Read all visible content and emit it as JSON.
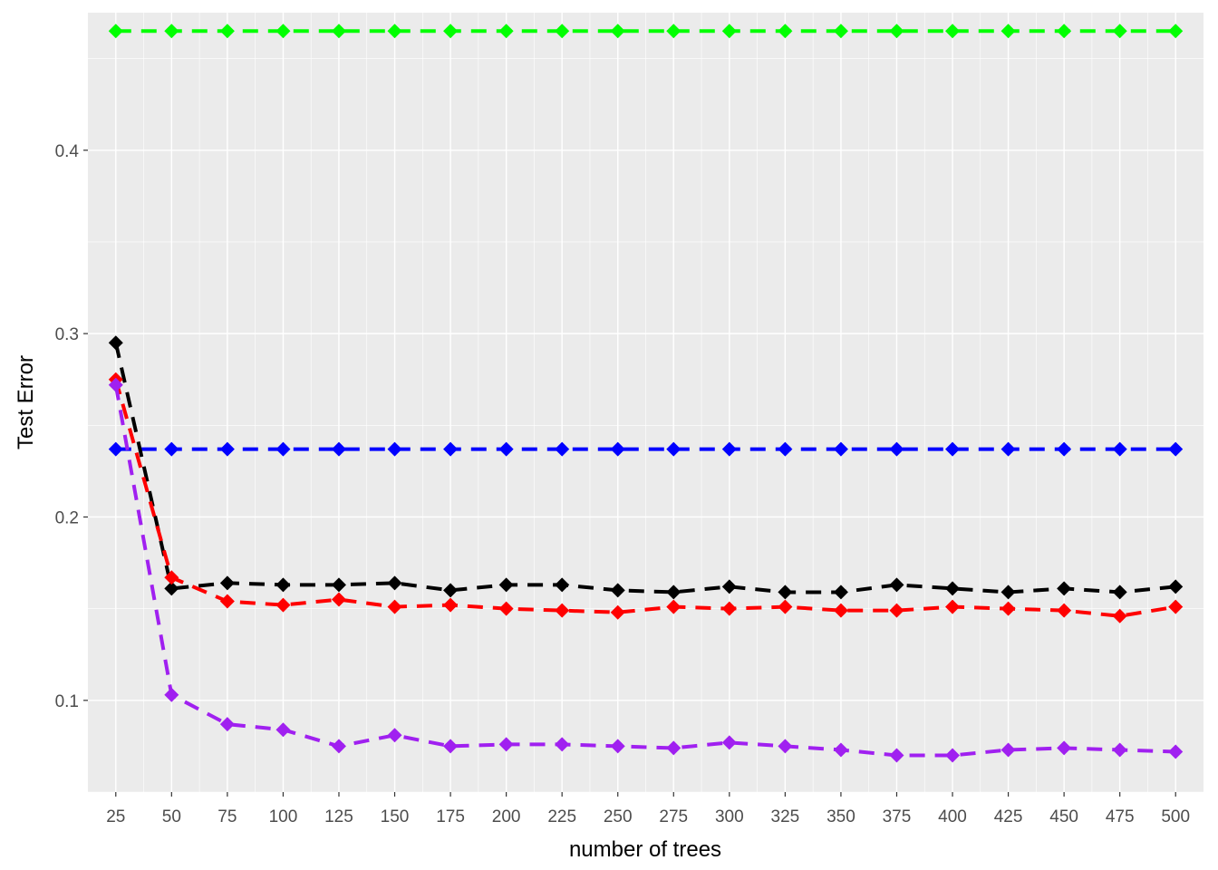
{
  "chart_data": {
    "type": "line",
    "title": "",
    "xlabel": "number of trees",
    "ylabel": "Test Error",
    "x": [
      25,
      50,
      75,
      100,
      125,
      150,
      175,
      200,
      225,
      250,
      275,
      300,
      325,
      350,
      375,
      400,
      425,
      450,
      475,
      500
    ],
    "xlim": [
      12.5,
      512.5
    ],
    "ylim": [
      0.05,
      0.475
    ],
    "y_ticks": [
      0.1,
      0.2,
      0.3,
      0.4
    ],
    "y_tick_labels": [
      "0.1",
      "0.2",
      "0.3",
      "0.4"
    ],
    "grid": true,
    "line_style": "dashed",
    "marker": "diamond",
    "legend": "none",
    "series": [
      {
        "color": "#00ff00",
        "values": [
          0.465,
          0.465,
          0.465,
          0.465,
          0.465,
          0.465,
          0.465,
          0.465,
          0.465,
          0.465,
          0.465,
          0.465,
          0.465,
          0.465,
          0.465,
          0.465,
          0.465,
          0.465,
          0.465,
          0.465
        ]
      },
      {
        "color": "#0000ff",
        "values": [
          0.237,
          0.237,
          0.237,
          0.237,
          0.237,
          0.237,
          0.237,
          0.237,
          0.237,
          0.237,
          0.237,
          0.237,
          0.237,
          0.237,
          0.237,
          0.237,
          0.237,
          0.237,
          0.237,
          0.237
        ]
      },
      {
        "color": "#000000",
        "values": [
          0.295,
          0.161,
          0.164,
          0.163,
          0.163,
          0.164,
          0.16,
          0.163,
          0.163,
          0.16,
          0.159,
          0.162,
          0.159,
          0.159,
          0.163,
          0.161,
          0.159,
          0.161,
          0.159,
          0.162
        ]
      },
      {
        "color": "#ff0000",
        "values": [
          0.275,
          0.167,
          0.154,
          0.152,
          0.155,
          0.151,
          0.152,
          0.15,
          0.149,
          0.148,
          0.151,
          0.15,
          0.151,
          0.149,
          0.149,
          0.151,
          0.15,
          0.149,
          0.146,
          0.151
        ]
      },
      {
        "color": "#a020f0",
        "values": [
          0.272,
          0.103,
          0.087,
          0.084,
          0.075,
          0.081,
          0.075,
          0.076,
          0.076,
          0.075,
          0.074,
          0.077,
          0.075,
          0.073,
          0.07,
          0.07,
          0.073,
          0.074,
          0.073,
          0.072
        ]
      }
    ]
  }
}
